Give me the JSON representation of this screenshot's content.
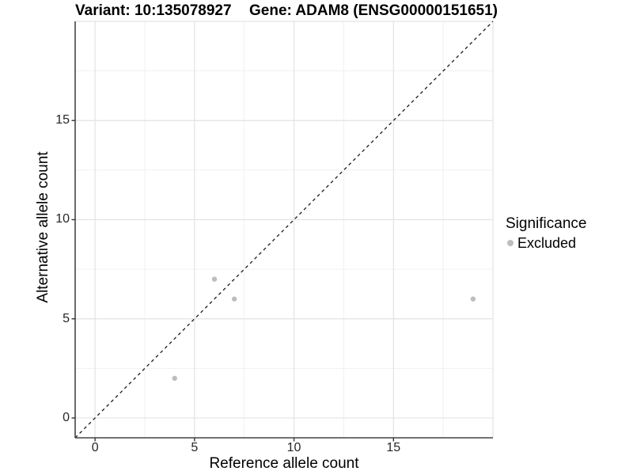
{
  "titles": {
    "left": "Variant: 10:135078927",
    "right": "Gene: ADAM8 (ENSG00000151651)"
  },
  "chart_data": {
    "type": "scatter",
    "xlabel": "Reference allele count",
    "ylabel": "Alternative allele count",
    "xlim": [
      -1,
      20
    ],
    "ylim": [
      -1,
      20
    ],
    "x_ticks": [
      0,
      5,
      10,
      15
    ],
    "y_ticks": [
      0,
      5,
      10,
      15
    ],
    "major_gridlines": [
      0,
      5,
      10,
      15,
      20
    ],
    "minor_gridlines": [
      2.5,
      7.5,
      12.5,
      17.5
    ],
    "grid": true,
    "series": [
      {
        "name": "Excluded",
        "color": "#bdbdbd",
        "points": [
          [
            4,
            2
          ],
          [
            6,
            7
          ],
          [
            7,
            6
          ],
          [
            19,
            6
          ]
        ]
      }
    ],
    "identity_line": {
      "from": [
        -1,
        -1
      ],
      "to": [
        20,
        20
      ],
      "style": "dashed",
      "color": "#1a1a1a"
    },
    "legend": {
      "title": "Significance",
      "position": "right",
      "items": [
        {
          "label": "Excluded",
          "color": "#bdbdbd"
        }
      ]
    }
  },
  "colors": {
    "background": "#ffffff",
    "axis_line": "#444444",
    "tick_mark": "#333333",
    "tick_label": "#262626",
    "major_grid": "#e3e3e3",
    "minor_grid": "#f1f1f1",
    "text": "#000000"
  }
}
